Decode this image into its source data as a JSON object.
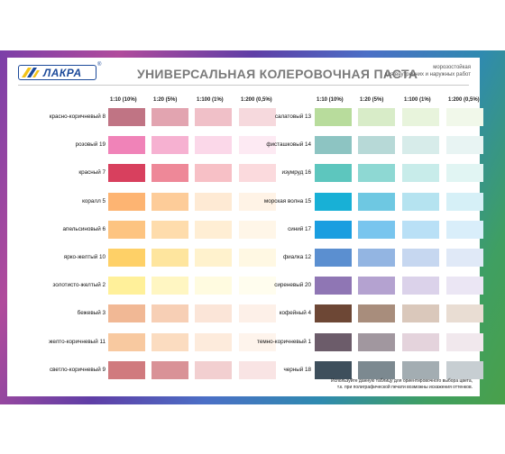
{
  "logo": {
    "text": "ЛАКРА",
    "reg": "®"
  },
  "header": {
    "title": "УНИВЕРСАЛЬНАЯ КОЛЕРОВОЧНАЯ ПАСТА",
    "subtitle_1": "морозостойкая",
    "subtitle_2": "для внутренних и наружных работ"
  },
  "columns": [
    "1:10 (10%)",
    "1:20 (5%)",
    "1:100 (1%)",
    "1:200 (0,5%)"
  ],
  "left": [
    {
      "name": "красно-коричневый 8",
      "colors": [
        "#c07484",
        "#e2a4b0",
        "#f0c0c8",
        "#f6d9dd"
      ]
    },
    {
      "name": "розовый 19",
      "colors": [
        "#f083b8",
        "#f6b1d1",
        "#fbd8e9",
        "#fdeaf3"
      ]
    },
    {
      "name": "красный 7",
      "colors": [
        "#d8405e",
        "#ee8898",
        "#f7c0c6",
        "#fbdadd"
      ]
    },
    {
      "name": "коралл 5",
      "colors": [
        "#fdb472",
        "#fdcc99",
        "#feead4",
        "#fff3e6"
      ]
    },
    {
      "name": "апельсиновый 6",
      "colors": [
        "#fdc481",
        "#fedcac",
        "#ffeed4",
        "#fff6e8"
      ]
    },
    {
      "name": "ярко-желтый 10",
      "colors": [
        "#fed067",
        "#fee59e",
        "#fff2cd",
        "#fff8e3"
      ]
    },
    {
      "name": "золотисто-желтый 2",
      "colors": [
        "#fff09a",
        "#fff6c2",
        "#fffbe0",
        "#fffdee"
      ]
    },
    {
      "name": "бежевый 3",
      "colors": [
        "#f1b895",
        "#f7cfb5",
        "#fbe5d8",
        "#fdf0e8"
      ]
    },
    {
      "name": "желто-коричневый 11",
      "colors": [
        "#f8c9a0",
        "#fbdcc0",
        "#fdebdc",
        "#fef4ec"
      ]
    },
    {
      "name": "светло-коричневый 9",
      "colors": [
        "#d07a7e",
        "#d99297",
        "#f2cfd0",
        "#f9e4e4"
      ]
    }
  ],
  "right": [
    {
      "name": "салатовый 13",
      "colors": [
        "#b8dc9c",
        "#d8ecc8",
        "#e8f4dc",
        "#f1f8ea"
      ]
    },
    {
      "name": "фисташковый 14",
      "colors": [
        "#8dc4c2",
        "#b7d9d7",
        "#d7ecea",
        "#e8f4f3"
      ]
    },
    {
      "name": "изумруд 16",
      "colors": [
        "#5dc6be",
        "#8ed8d3",
        "#c8ecea",
        "#e1f5f3"
      ]
    },
    {
      "name": "морская волна 15",
      "colors": [
        "#18b0d6",
        "#6ec8e2",
        "#b5e3f0",
        "#d6f0f7"
      ]
    },
    {
      "name": "синий 17",
      "colors": [
        "#1a9ee0",
        "#78c5ee",
        "#b9e0f6",
        "#d9eefa"
      ]
    },
    {
      "name": "фиалка 12",
      "colors": [
        "#5b8fd0",
        "#93b5e2",
        "#c6d7f0",
        "#e0e9f7"
      ]
    },
    {
      "name": "сиреневый 20",
      "colors": [
        "#8f76b4",
        "#b4a2d0",
        "#dbd2ea",
        "#ebe6f4"
      ]
    },
    {
      "name": "кофейный 4",
      "colors": [
        "#6d4735",
        "#a88d7c",
        "#dac8bb",
        "#e9ddd3"
      ]
    },
    {
      "name": "темно-коричневый 1",
      "colors": [
        "#6c5c6a",
        "#a1979f",
        "#e4d3dc",
        "#f1e8ed"
      ]
    },
    {
      "name": "черный 18",
      "colors": [
        "#3e4f5c",
        "#7c8990",
        "#a3adb2",
        "#c7ced2"
      ]
    }
  ],
  "note": {
    "line1": "Используйте данную таблицу для ориентировочного выбора цвета,",
    "line2": "т.к. при полиграфической печати возможны искажения оттенков."
  }
}
